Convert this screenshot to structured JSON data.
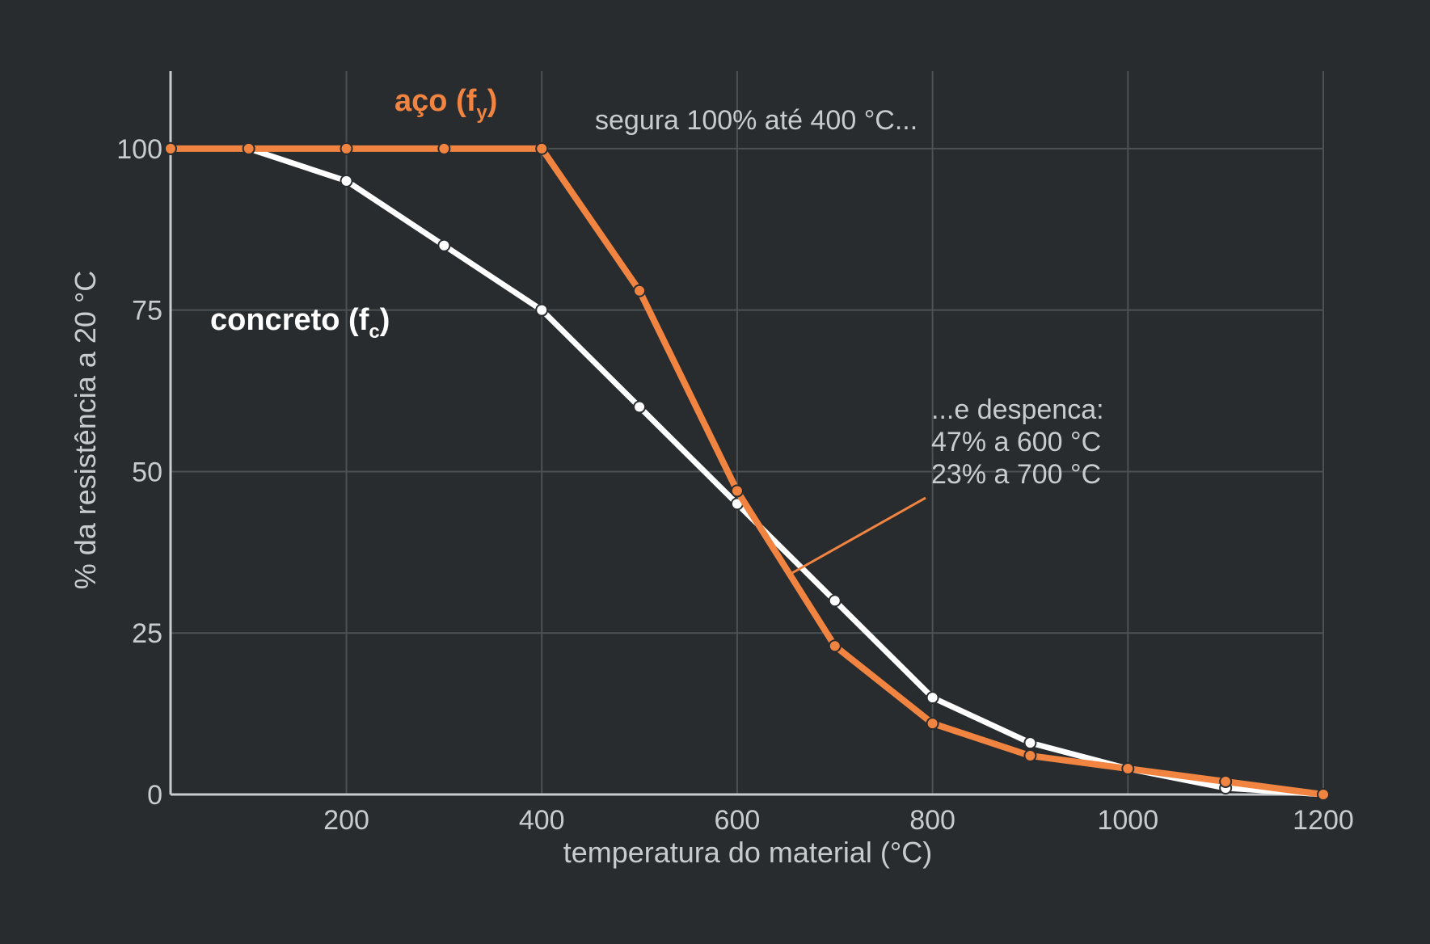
{
  "chart_data": {
    "type": "line",
    "title": "",
    "xlabel": "temperatura do material (°C)",
    "ylabel": "% da resistência a 20 °C",
    "xlim": [
      20,
      1200
    ],
    "ylim": [
      0,
      112
    ],
    "x_ticks": [
      200,
      400,
      600,
      800,
      1000,
      1200
    ],
    "y_ticks": [
      0,
      25,
      50,
      75,
      100
    ],
    "grid": true,
    "legend": "none (series labelled directly on the plot)",
    "series": [
      {
        "name": "concreto (fc)",
        "label_main": "concreto (f",
        "label_sub": "c",
        "label_end": ")",
        "color": "#ffffff",
        "x": [
          20,
          100,
          200,
          300,
          400,
          500,
          600,
          700,
          800,
          900,
          1000,
          1100,
          1200
        ],
        "y": [
          100,
          100,
          95,
          85,
          75,
          60,
          45,
          30,
          15,
          8,
          4,
          1,
          0
        ]
      },
      {
        "name": "aço (fy)",
        "label_main": "aço (f",
        "label_sub": "y",
        "label_end": ")",
        "color": "#f08440",
        "x": [
          20,
          100,
          200,
          300,
          400,
          500,
          600,
          700,
          800,
          900,
          1000,
          1100,
          1200
        ],
        "y": [
          100,
          100,
          100,
          100,
          100,
          78,
          47,
          23,
          11,
          6,
          4,
          2,
          0
        ]
      }
    ],
    "annotations": [
      {
        "id": "hold",
        "text": "segura 100% até 400 °C..."
      },
      {
        "id": "drop",
        "lines": [
          "...e despenca:",
          "47% a 600 °C",
          "23% a 700 °C"
        ],
        "arrow_color": "#f08440"
      }
    ]
  }
}
